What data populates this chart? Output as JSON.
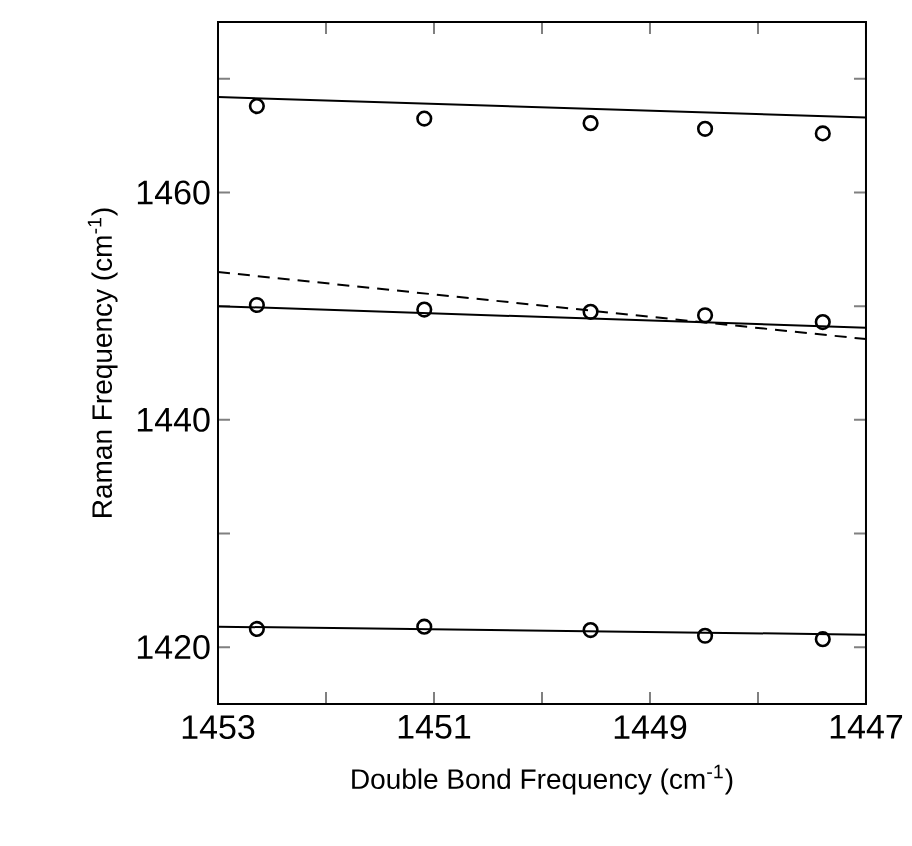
{
  "chart_data": {
    "type": "scatter",
    "xlabel": "Double Bond Frequency (cm$^{-1}$)",
    "ylabel": "Raman Frequency (cm$^{-1}$)",
    "xlim": [
      1453,
      1447
    ],
    "ylim": [
      1415,
      1475
    ],
    "xticks": [
      1453,
      {
        "value": 1452,
        "label": null
      },
      1451,
      {
        "value": 1450,
        "label": null
      },
      1449,
      {
        "value": 1448,
        "label": null
      },
      1447
    ],
    "yticks": [
      1420,
      {
        "value": 1430,
        "label": null
      },
      1440,
      {
        "value": 1450,
        "label": null
      },
      1460,
      {
        "value": 1470,
        "label": null
      }
    ],
    "series": [
      {
        "color": "#000000",
        "marker": "circle",
        "x": [
          1452.64,
          1451.09,
          1449.55,
          1448.49,
          1447.4
        ],
        "values": [
          1467.6,
          1466.5,
          1466.1,
          1465.6,
          1465.2
        ]
      },
      {
        "color": "#000000",
        "marker": "circle",
        "x": [
          1452.64,
          1451.09,
          1449.55,
          1448.49,
          1447.4
        ],
        "values": [
          1450.1,
          1449.7,
          1449.5,
          1449.2,
          1448.6
        ]
      },
      {
        "color": "#000000",
        "marker": "circle",
        "x": [
          1452.64,
          1451.09,
          1449.55,
          1448.49,
          1447.4
        ],
        "values": [
          1421.6,
          1421.8,
          1421.5,
          1421.0,
          1420.7
        ]
      },
      {
        "type": "line",
        "color": "#000000",
        "marker": "none",
        "line_style": "solid",
        "x": [
          1453,
          1447
        ],
        "values": [
          1468.4,
          1466.6
        ]
      },
      {
        "type": "line",
        "color": "#000000",
        "marker": "none",
        "line_style": "solid",
        "x": [
          1453,
          1447
        ],
        "values": [
          1450.0,
          1448.1
        ]
      },
      {
        "type": "line",
        "color": "#000000",
        "marker": "none",
        "line_style": "dashed",
        "x": [
          1453,
          1447
        ],
        "values": [
          1453.0,
          1447.1
        ]
      },
      {
        "type": "line",
        "color": "#000000",
        "marker": "none",
        "line_style": "solid",
        "x": [
          1453,
          1447
        ],
        "values": [
          1421.8,
          1421.1
        ]
      }
    ]
  }
}
